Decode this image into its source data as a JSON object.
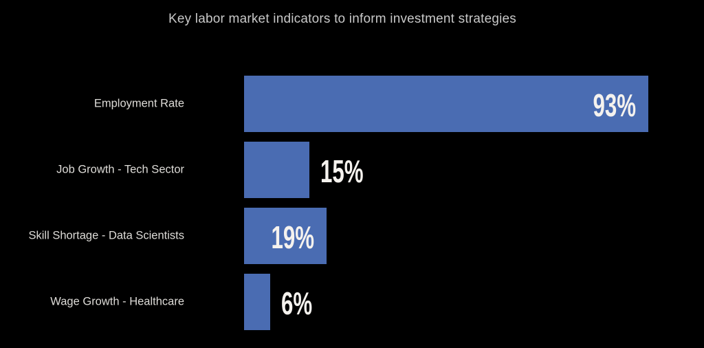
{
  "title": "Key labor market indicators to inform investment strategies",
  "colors": {
    "bg": "#000000",
    "bar": "#4a6cb2",
    "title": "#c8c8c8",
    "label": "#dedcd8",
    "value": "#f5f2ee"
  },
  "chart_data": {
    "type": "bar",
    "orientation": "horizontal",
    "title": "Key labor market indicators to inform investment strategies",
    "categories": [
      "Employment Rate",
      "Job Growth - Tech Sector",
      "Skill Shortage - Data Scientists",
      "Wage Growth - Healthcare"
    ],
    "values": [
      93,
      15,
      19,
      6
    ],
    "value_labels": [
      "93%",
      "15%",
      "19%",
      "6%"
    ],
    "value_label_placement": [
      "inside",
      "outside",
      "inside",
      "outside"
    ],
    "xlabel": "",
    "ylabel": "",
    "xlim": [
      0,
      100
    ],
    "grid": false,
    "legend": false,
    "axes_visible": false
  }
}
